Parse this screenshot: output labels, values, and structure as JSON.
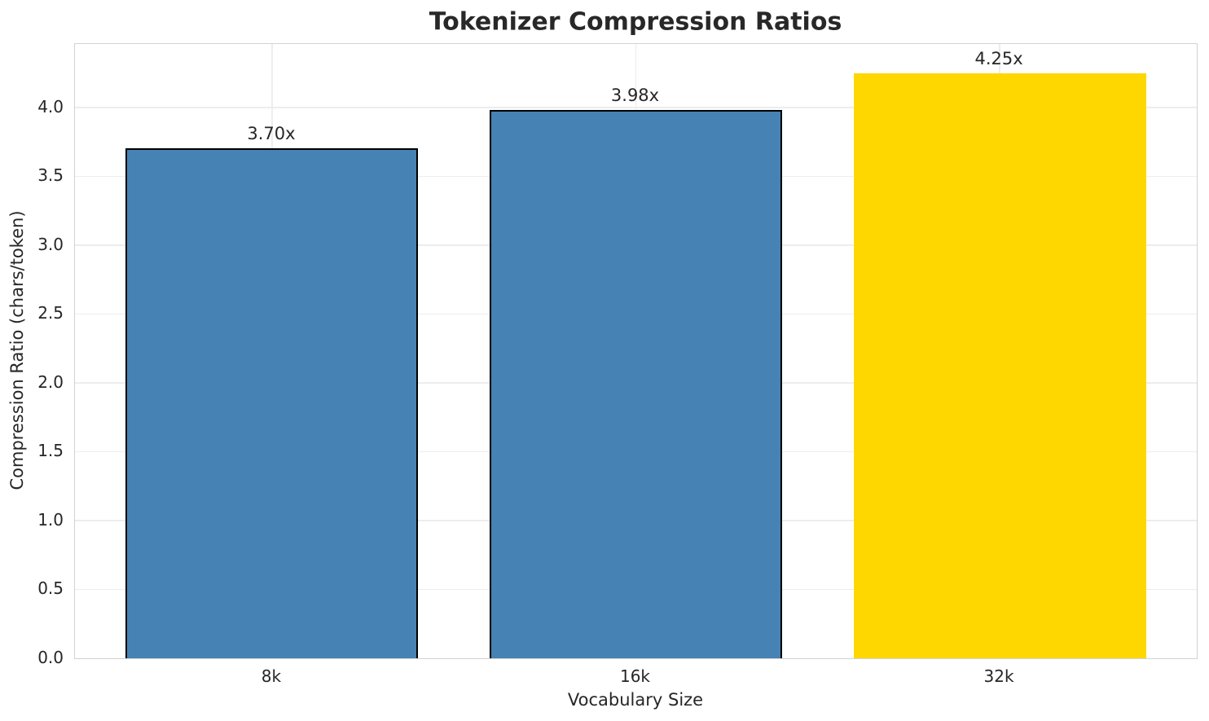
{
  "chart_data": {
    "type": "bar",
    "title": "Tokenizer Compression Ratios",
    "xlabel": "Vocabulary Size",
    "ylabel": "Compression Ratio (chars/token)",
    "categories": [
      "8k",
      "16k",
      "32k"
    ],
    "values": [
      3.7,
      3.98,
      4.25
    ],
    "bar_labels": [
      "3.70x",
      "3.98x",
      "4.25x"
    ],
    "bar_fill_colors": [
      "#4682b4",
      "#4682b4",
      "#ffd700"
    ],
    "bar_edge_colors": [
      "#000000",
      "#000000",
      "#ffd700"
    ],
    "ylim": [
      0,
      4.46
    ],
    "yticks": [
      0.0,
      0.5,
      1.0,
      1.5,
      2.0,
      2.5,
      3.0,
      3.5,
      4.0
    ],
    "ytick_labels": [
      "0.0",
      "0.5",
      "1.0",
      "1.5",
      "2.0",
      "2.5",
      "3.0",
      "3.5",
      "4.0"
    ],
    "grid": true,
    "grid_axes": "both",
    "legend": "none",
    "background_color": "#ffffff",
    "grid_color": "#ededed",
    "spine_color": "#d2d2d2",
    "text_color": "#262626"
  }
}
